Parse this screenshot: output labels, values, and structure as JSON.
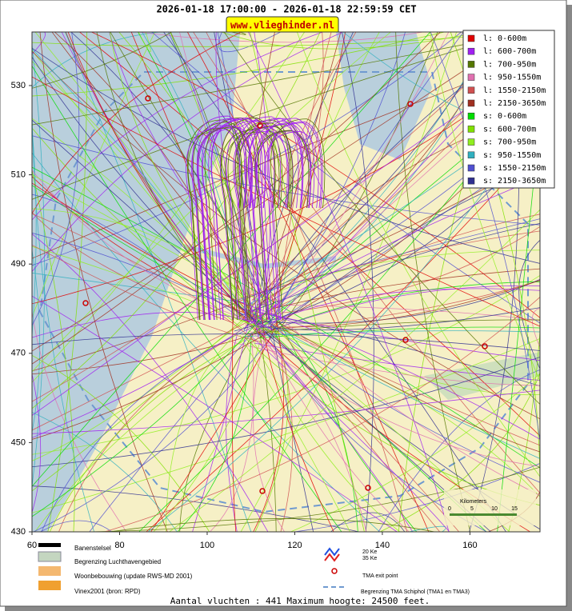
{
  "header": {
    "title": "2026-01-18 17:00:00 - 2026-01-18 22:59:59 CET",
    "url": "www.vlieghinder.nl"
  },
  "axes": {
    "xlim": [
      60,
      176
    ],
    "ylim": [
      430,
      542
    ],
    "xticks": [
      60,
      80,
      100,
      120,
      140,
      160
    ],
    "yticks": [
      430,
      450,
      470,
      490,
      510,
      530
    ]
  },
  "legend": [
    {
      "label": "l: 0-600m",
      "color": "#e00000"
    },
    {
      "label": "l: 600-700m",
      "color": "#a020f0"
    },
    {
      "label": "l: 700-950m",
      "color": "#557700"
    },
    {
      "label": "l: 950-1550m",
      "color": "#e070b0"
    },
    {
      "label": "l: 1550-2150m",
      "color": "#d05050"
    },
    {
      "label": "l: 2150-3650m",
      "color": "#a03020"
    },
    {
      "label": "s: 0-600m",
      "color": "#00dd00"
    },
    {
      "label": "s: 600-700m",
      "color": "#80e000"
    },
    {
      "label": "s: 700-950m",
      "color": "#90ee20"
    },
    {
      "label": "s: 950-1550m",
      "color": "#30b0c0"
    },
    {
      "label": "s: 1550-2150m",
      "color": "#5050d0"
    },
    {
      "label": "s: 2150-3650m",
      "color": "#303090"
    }
  ],
  "scale": {
    "title": "Kilometers",
    "labels": [
      "0",
      "5",
      "10",
      "15"
    ]
  },
  "map_legend": {
    "runways": "Banenstelsel",
    "airport": "Begrenzing Luchthavengebied",
    "housing": "Woonbebouwing (update RWS-MD 2001)",
    "vinex": "Vinex2001 (bron: RPD)",
    "ke20": "20 Ke",
    "ke35": "35 Ke",
    "exit": "TMA exit point",
    "tma": "Begrenzing TMA Schiphol  (TMA1 en TMA3)"
  },
  "footer": "Aantal vluchten : 441 Maximum hoogte: 24500 feet."
}
